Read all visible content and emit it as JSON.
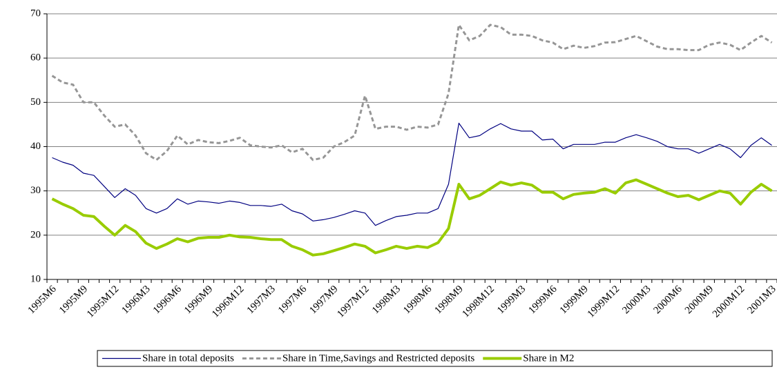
{
  "chart_data": {
    "type": "line",
    "categories": [
      "1995M6",
      null,
      null,
      "1995M9",
      null,
      null,
      "1995M12",
      null,
      null,
      "1996M3",
      null,
      null,
      "1996M6",
      null,
      null,
      "1996M9",
      null,
      null,
      "1996M12",
      null,
      null,
      "1997M3",
      null,
      null,
      "1997M6",
      null,
      null,
      "1997M9",
      null,
      null,
      "1997M12",
      null,
      null,
      "1998M3",
      null,
      null,
      "1998M6",
      null,
      null,
      "1998M9",
      null,
      null,
      "1998M12",
      null,
      null,
      "1999M3",
      null,
      null,
      "1999M6",
      null,
      null,
      "1999M9",
      null,
      null,
      "1999M12",
      null,
      null,
      "2000M3",
      null,
      null,
      "2000M6",
      null,
      null,
      "2000M9",
      null,
      null,
      "2000M12",
      null,
      null,
      "2001M3"
    ],
    "series": [
      {
        "name": "Share in total deposits",
        "color": "#000080",
        "width": 1.2,
        "dashed": false,
        "values": [
          37.5,
          36.5,
          35.8,
          34,
          33.5,
          31,
          28.5,
          30.5,
          29,
          26,
          25,
          26,
          28.2,
          27,
          27.7,
          27.5,
          27.2,
          27.7,
          27.4,
          26.7,
          26.7,
          26.5,
          27,
          25.5,
          24.8,
          23.2,
          23.5,
          24,
          24.7,
          25.5,
          25,
          22.2,
          23.3,
          24.2,
          24.5,
          25,
          25,
          26,
          31.5,
          45.3,
          42,
          42.5,
          44,
          45.2,
          44,
          43.5,
          43.5,
          41.5,
          41.7,
          39.5,
          40.5,
          40.5,
          40.5,
          41,
          41,
          42,
          42.7,
          42,
          41.2,
          40,
          39.5,
          39.5,
          38.5,
          39.5,
          40.5,
          39.5,
          37.5,
          40.3,
          42,
          40.3
        ]
      },
      {
        "name": "Share in Time,Savings and Restricted deposits",
        "color": "#969696",
        "width": 3,
        "dashed": true,
        "values": [
          56,
          54.5,
          54,
          50,
          50,
          47,
          44.5,
          45,
          42.5,
          38.5,
          37,
          39,
          42.5,
          40.5,
          41.5,
          41,
          40.8,
          41.3,
          42,
          40.3,
          40,
          39.8,
          40.3,
          38.7,
          39.5,
          37,
          37.5,
          40,
          41,
          42.5,
          51.5,
          44,
          44.5,
          44.5,
          43.8,
          44.5,
          44.3,
          45,
          52,
          67.5,
          64,
          65,
          67.5,
          67,
          65.3,
          65.3,
          65,
          64,
          63.5,
          62,
          62.8,
          62.3,
          62.7,
          63.5,
          63.6,
          64.3,
          65,
          63.8,
          62.6,
          62,
          62,
          61.8,
          61.8,
          63,
          63.5,
          63,
          61.8,
          63.5,
          65,
          63.5
        ]
      },
      {
        "name": "Share in M2",
        "color": "#99cc00",
        "width": 4,
        "dashed": false,
        "values": [
          28.2,
          27,
          26,
          24.5,
          24.2,
          22,
          20,
          22.2,
          20.8,
          18.2,
          17,
          18,
          19.2,
          18.5,
          19.3,
          19.5,
          19.5,
          20,
          19.6,
          19.5,
          19.2,
          19,
          19,
          17.5,
          16.7,
          15.5,
          15.8,
          16.5,
          17.2,
          18,
          17.5,
          16,
          16.7,
          17.5,
          17,
          17.5,
          17.2,
          18.3,
          21.5,
          31.5,
          28.2,
          29,
          30.5,
          32,
          31.3,
          31.8,
          31.3,
          29.7,
          29.7,
          28.2,
          29.2,
          29.5,
          29.7,
          30.5,
          29.5,
          31.8,
          32.5,
          31.5,
          30.5,
          29.5,
          28.7,
          29,
          28,
          29,
          30,
          29.5,
          27,
          29.7,
          31.5,
          30
        ]
      }
    ],
    "ylim": [
      10,
      70
    ],
    "yticks": [
      10,
      20,
      30,
      40,
      50,
      60,
      70
    ],
    "grid": true,
    "legend": "bottom"
  }
}
